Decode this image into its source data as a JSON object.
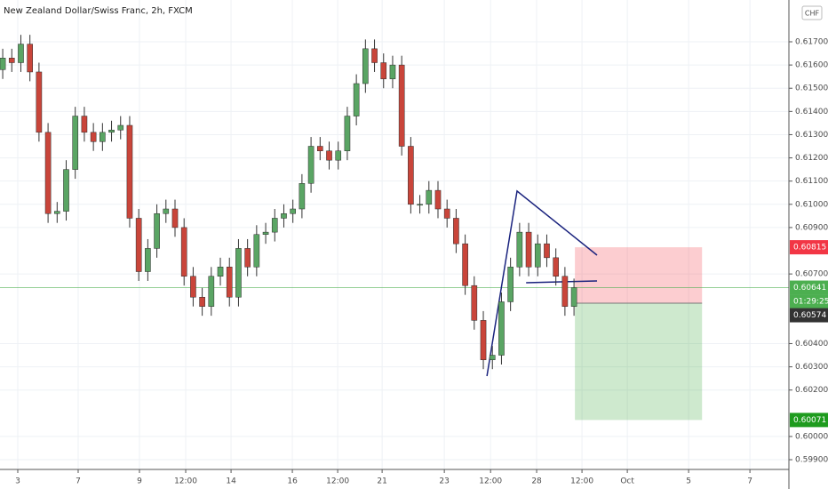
{
  "chart_data": {
    "type": "candlestick",
    "title": "New Zealand Dollar/Swiss Franc, 2h, FXCM",
    "currency": "CHF",
    "countdown": "01:29:25",
    "x": [
      0,
      5,
      10,
      15,
      20,
      25,
      30,
      35,
      40,
      45,
      50,
      55,
      60,
      65,
      70,
      75,
      80,
      85,
      90,
      95,
      100,
      105,
      110,
      115,
      120,
      125,
      130,
      135,
      140,
      145,
      150,
      155,
      160,
      165,
      170,
      175,
      180,
      185,
      190,
      195,
      200,
      205,
      210,
      215,
      220,
      225,
      230,
      235,
      240,
      245,
      250,
      255,
      260,
      265,
      270,
      275,
      280,
      285,
      290,
      295,
      300,
      305,
      310,
      315
    ],
    "open": [
      0.6158,
      0.6163,
      0.6161,
      0.6169,
      0.6157,
      0.6131,
      0.6096,
      0.6097,
      0.6115,
      0.6138,
      0.6131,
      0.6127,
      0.6131,
      0.6132,
      0.6134,
      0.6094,
      0.6071,
      0.6081,
      0.6096,
      0.6098,
      0.609,
      0.6069,
      0.606,
      0.6056,
      0.6069,
      0.6073,
      0.606,
      0.6081,
      0.6073,
      0.6087,
      0.6088,
      0.6094,
      0.6096,
      0.6098,
      0.6109,
      0.6125,
      0.6123,
      0.6119,
      0.6123,
      0.6138,
      0.6152,
      0.6167,
      0.6161,
      0.6154,
      0.616,
      0.6125,
      0.61,
      0.61,
      0.6106,
      0.6098,
      0.6094,
      0.6083,
      0.6065,
      0.605,
      0.6033,
      0.6035,
      0.6058,
      0.6073,
      0.6088,
      0.6073,
      0.6083,
      0.6077,
      0.6069,
      0.6056
    ],
    "high": [
      0.6167,
      0.6167,
      0.6173,
      0.6173,
      0.6161,
      0.6135,
      0.6101,
      0.6119,
      0.6142,
      0.6142,
      0.6135,
      0.6135,
      0.6136,
      0.6138,
      0.6138,
      0.6098,
      0.6085,
      0.61,
      0.6102,
      0.6102,
      0.6094,
      0.6073,
      0.6064,
      0.6073,
      0.6077,
      0.6077,
      0.6085,
      0.6085,
      0.6091,
      0.6092,
      0.6098,
      0.61,
      0.6102,
      0.6113,
      0.6129,
      0.6129,
      0.6127,
      0.6127,
      0.6142,
      0.6156,
      0.6171,
      0.6171,
      0.6165,
      0.6164,
      0.6164,
      0.6129,
      0.6104,
      0.611,
      0.611,
      0.6102,
      0.6098,
      0.6087,
      0.6069,
      0.6054,
      0.6039,
      0.6062,
      0.6077,
      0.6092,
      0.6092,
      0.6087,
      0.6087,
      0.6081,
      0.6073,
      0.6068
    ],
    "low": [
      0.6154,
      0.6157,
      0.6157,
      0.6153,
      0.6127,
      0.6092,
      0.6092,
      0.6093,
      0.6111,
      0.6127,
      0.6123,
      0.6123,
      0.6127,
      0.6128,
      0.609,
      0.6067,
      0.6067,
      0.6077,
      0.6092,
      0.6086,
      0.6065,
      0.6056,
      0.6052,
      0.6052,
      0.6065,
      0.6056,
      0.6056,
      0.6069,
      0.6069,
      0.6083,
      0.6084,
      0.609,
      0.6092,
      0.6094,
      0.6105,
      0.6119,
      0.6115,
      0.6115,
      0.6119,
      0.6134,
      0.6148,
      0.6157,
      0.615,
      0.615,
      0.6121,
      0.6096,
      0.6096,
      0.6096,
      0.6094,
      0.609,
      0.6079,
      0.6061,
      0.6046,
      0.6029,
      0.6029,
      0.6031,
      0.6054,
      0.6069,
      0.6069,
      0.6069,
      0.6073,
      0.6065,
      0.6052,
      0.6052
    ],
    "close": [
      0.6163,
      0.6161,
      0.6169,
      0.6157,
      0.6131,
      0.6096,
      0.6097,
      0.6115,
      0.6138,
      0.6131,
      0.6127,
      0.6131,
      0.6132,
      0.6134,
      0.6094,
      0.6071,
      0.6081,
      0.6096,
      0.6098,
      0.609,
      0.6069,
      0.606,
      0.6056,
      0.6069,
      0.6073,
      0.606,
      0.6081,
      0.6073,
      0.6087,
      0.6088,
      0.6094,
      0.6096,
      0.6098,
      0.6109,
      0.6125,
      0.6123,
      0.6119,
      0.6123,
      0.6138,
      0.6152,
      0.6167,
      0.6161,
      0.6154,
      0.616,
      0.6125,
      0.61,
      0.61,
      0.6106,
      0.6098,
      0.6094,
      0.6083,
      0.6065,
      0.605,
      0.6033,
      0.6035,
      0.6058,
      0.6073,
      0.6088,
      0.6073,
      0.6083,
      0.6077,
      0.6069,
      0.6056,
      0.60641
    ],
    "up_color": "#5aa564",
    "down_color": "#c9453a",
    "wick_color": "#333333",
    "last_color": "#4caf50",
    "xlim": [
      -1.5,
      433.5
    ],
    "xticks": [
      {
        "value": 8.3,
        "label": "3"
      },
      {
        "value": 41.6,
        "label": "7"
      },
      {
        "value": 75.4,
        "label": "9"
      },
      {
        "value": 100.9,
        "label": "12:00"
      },
      {
        "value": 125.9,
        "label": "14"
      },
      {
        "value": 159.7,
        "label": "16"
      },
      {
        "value": 184.7,
        "label": "12:00"
      },
      {
        "value": 209.2,
        "label": "21"
      },
      {
        "value": 243.5,
        "label": "23"
      },
      {
        "value": 269,
        "label": "12:00"
      },
      {
        "value": 294.4,
        "label": "28"
      },
      {
        "value": 319.4,
        "label": "12:00"
      },
      {
        "value": 344.4,
        "label": "Oct"
      },
      {
        "value": 378.2,
        "label": "5"
      },
      {
        "value": 412,
        "label": "7"
      }
    ],
    "ylim": [
      0.59858,
      0.6188
    ],
    "yticks": [
      {
        "value": 0.617,
        "label": "0.61700"
      },
      {
        "value": 0.616,
        "label": "0.61600"
      },
      {
        "value": 0.615,
        "label": "0.61500"
      },
      {
        "value": 0.614,
        "label": "0.61400"
      },
      {
        "value": 0.613,
        "label": "0.61300"
      },
      {
        "value": 0.612,
        "label": "0.61200"
      },
      {
        "value": 0.611,
        "label": "0.61100"
      },
      {
        "value": 0.61,
        "label": "0.61000"
      },
      {
        "value": 0.609,
        "label": "0.60900"
      },
      {
        "value": 0.607,
        "label": "0.60700"
      },
      {
        "value": 0.604,
        "label": "0.60400"
      },
      {
        "value": 0.603,
        "label": "0.60300"
      },
      {
        "value": 0.602,
        "label": "0.60200"
      },
      {
        "value": 0.6,
        "label": "0.60000"
      },
      {
        "value": 0.599,
        "label": "0.59900"
      }
    ],
    "grid": true,
    "position": {
      "x": [
        315.5,
        385.6
      ],
      "entry": 0.60574,
      "stop": 0.60815,
      "target": 0.60071,
      "stop_color": "#f23645",
      "target_color": "#1e9b1e",
      "entry_color": "#333333"
    },
    "drawings": [
      {
        "x": [
          267,
          283.6,
          327.7
        ],
        "y": [
          0.6026,
          0.61057,
          0.60781
        ],
        "color": "#1a237e"
      },
      {
        "x": [
          288.6,
          327.7
        ],
        "y": [
          0.60662,
          0.6067
        ],
        "color": "#1a237e"
      }
    ]
  }
}
